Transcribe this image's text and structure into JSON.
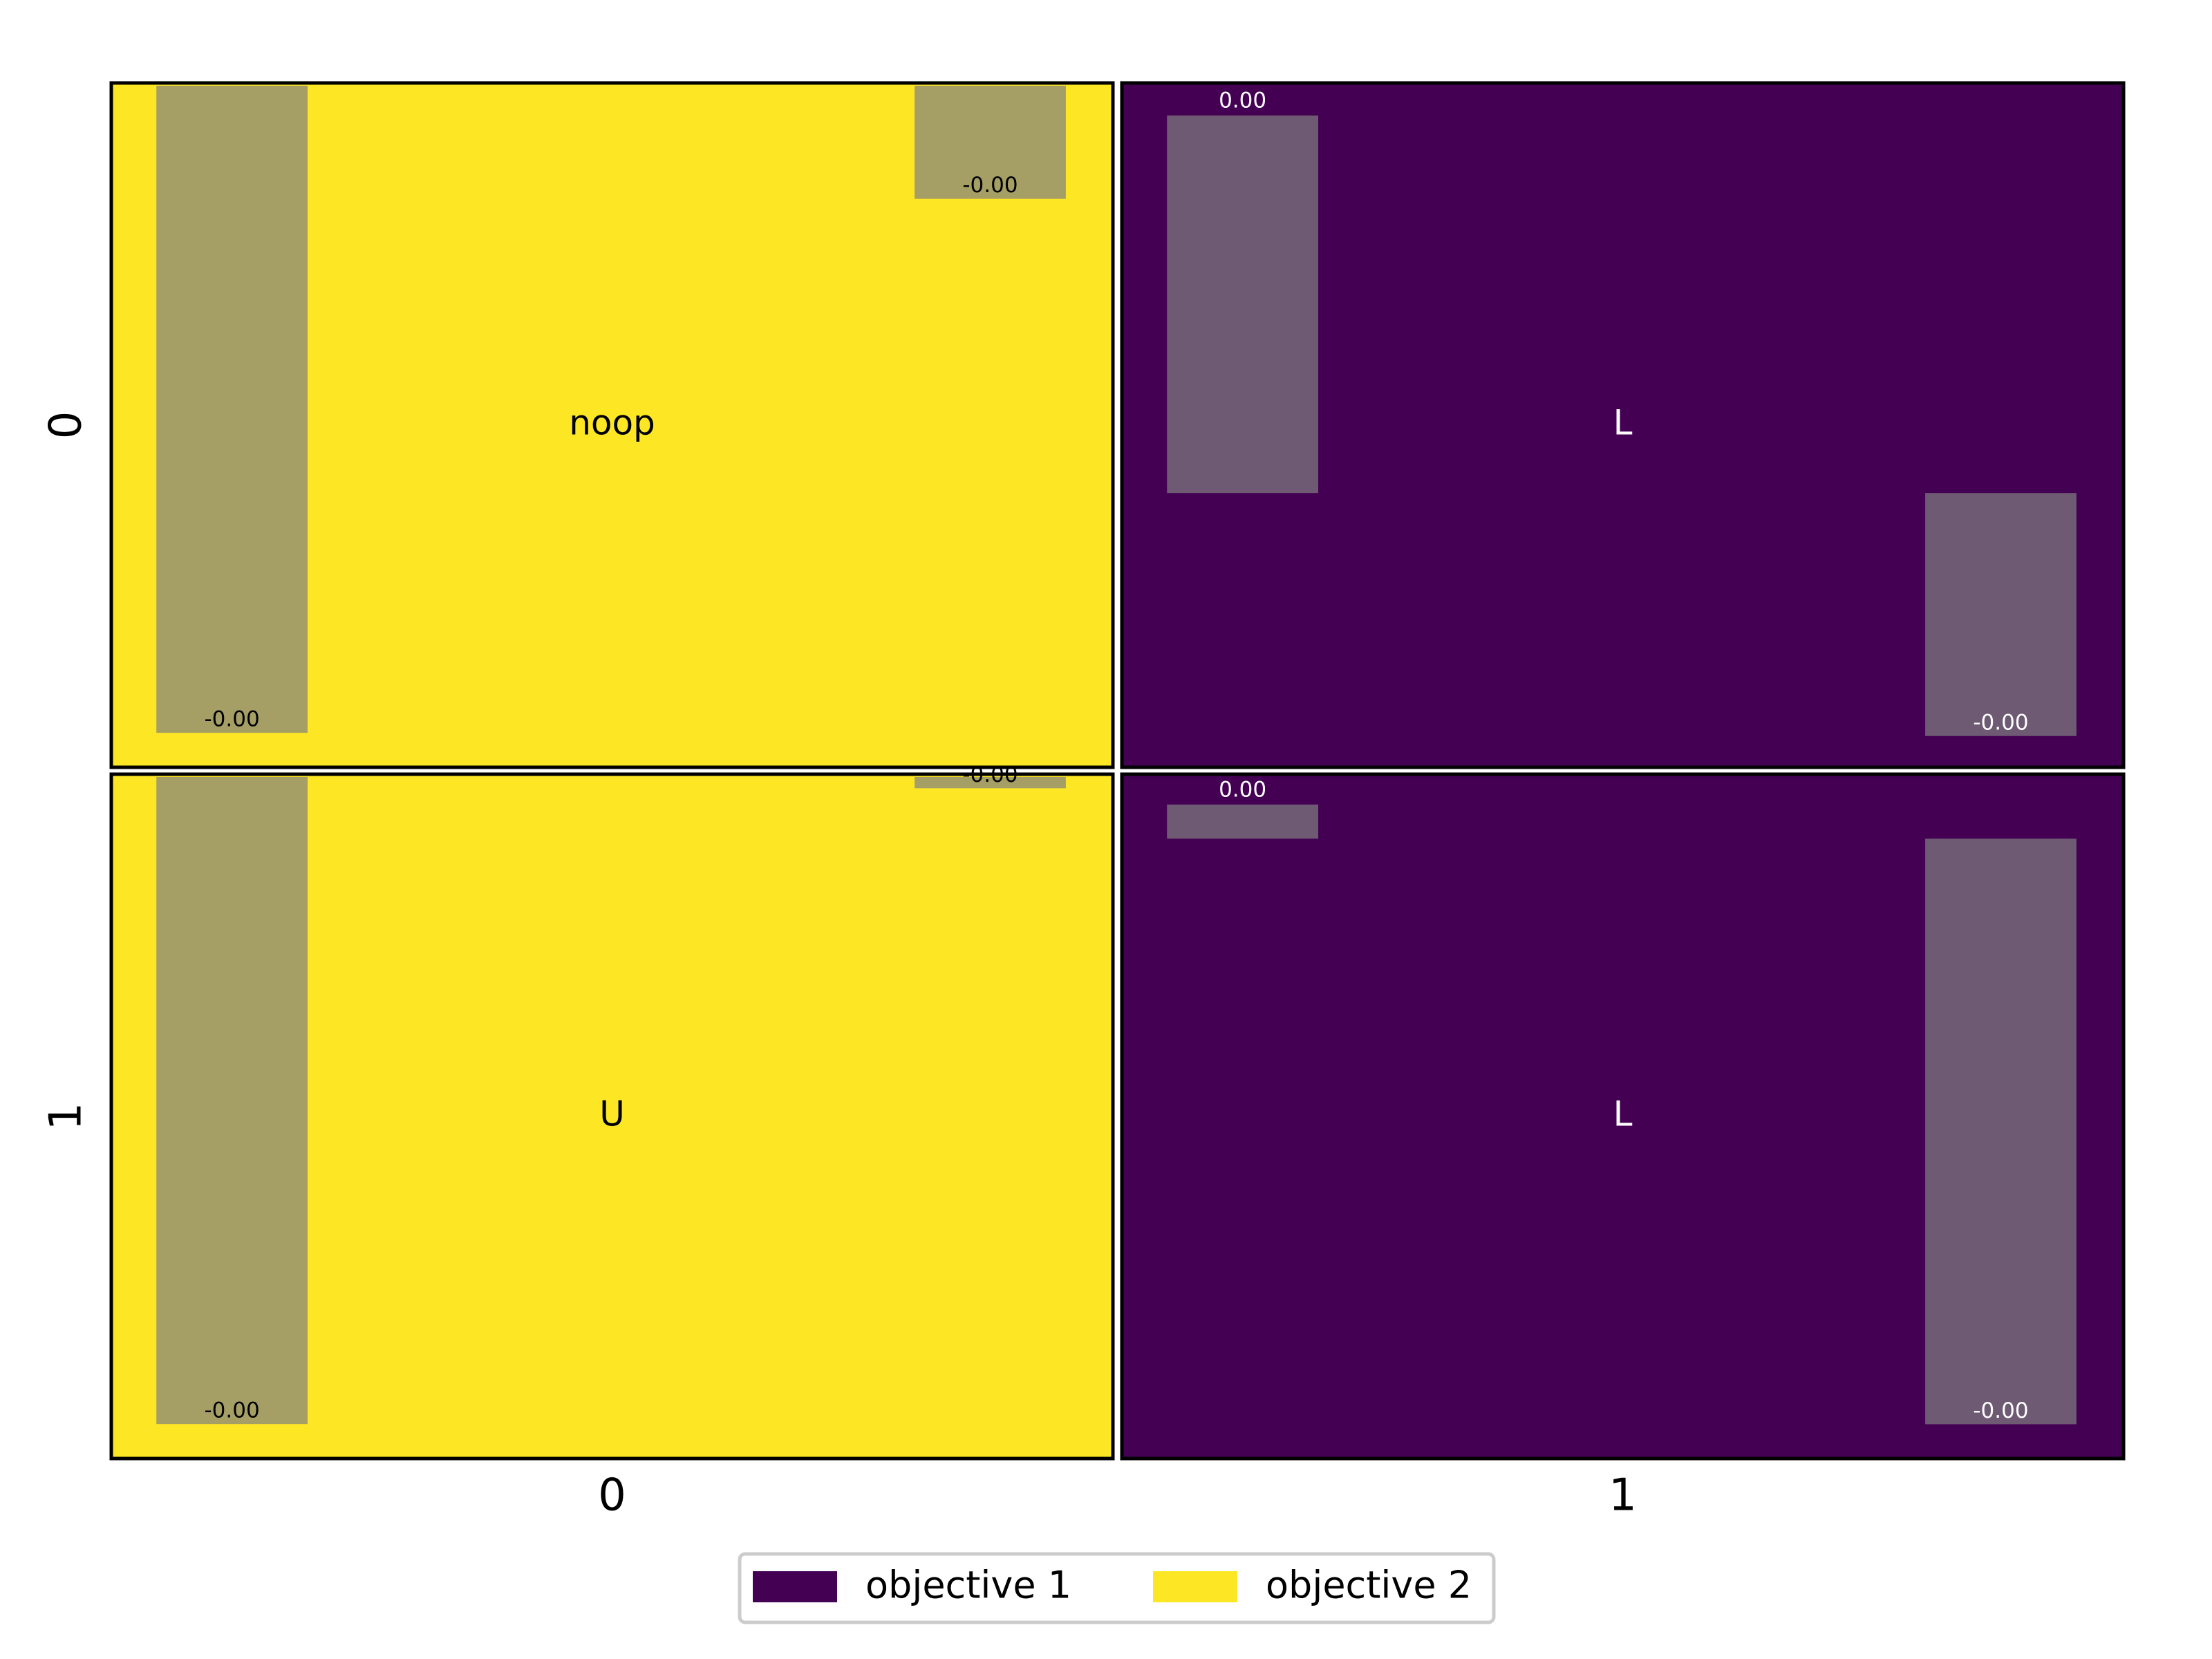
{
  "chart_data": {
    "type": "policy-grid",
    "x_labels": [
      "0",
      "1"
    ],
    "y_labels": [
      "0",
      "1"
    ],
    "legend": [
      {
        "name": "objective 1",
        "color": "#440154"
      },
      {
        "name": "objective 2",
        "color": "#fde725"
      }
    ],
    "bar_color": "#808080",
    "bar_opacity": 0.7,
    "cells": [
      [
        {
          "action": "noop",
          "color": "#fde725",
          "ylim": [
            -0.0045,
            0
          ],
          "values": [
            -0.00429,
            -0.00075
          ],
          "value_labels": [
            "-0.00",
            "-0.00"
          ]
        },
        {
          "action": "L",
          "color": "#440154",
          "ylim": [
            -0.002,
            0.003
          ],
          "values": [
            0.00278,
            -0.00179
          ],
          "value_labels": [
            "0.00",
            "-0.00"
          ]
        }
      ],
      [
        {
          "action": "U",
          "color": "#fde725",
          "ylim": [
            -0.0045,
            0
          ],
          "values": [
            -0.00429,
            -7.5e-05
          ],
          "value_labels": [
            "-0.00",
            "-0.00"
          ]
        },
        {
          "action": "L",
          "color": "#440154",
          "ylim": [
            -0.0045,
            0.00045
          ],
          "values": [
            0.000249,
            -0.00427
          ],
          "value_labels": [
            "0.00",
            "-0.00"
          ]
        }
      ]
    ]
  }
}
